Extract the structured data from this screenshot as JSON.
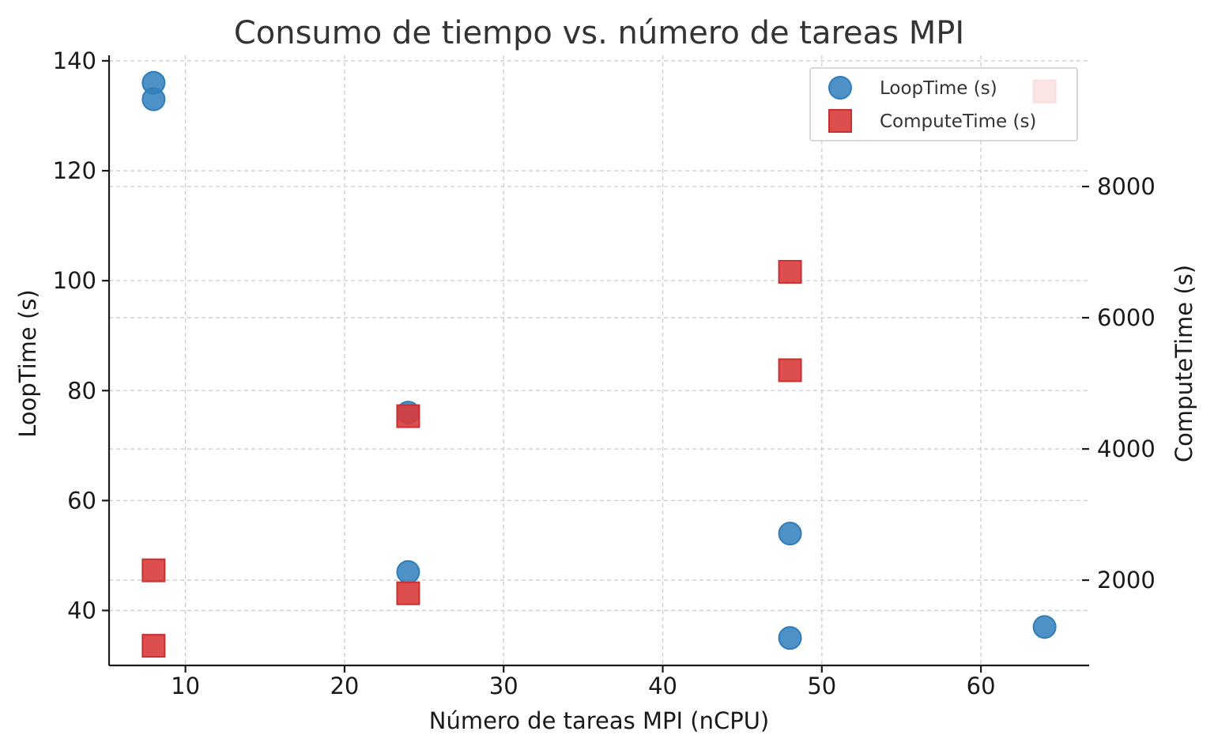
{
  "chart_data": {
    "type": "scatter",
    "title": "Consumo de tiempo vs. número de tareas MPI",
    "xlabel": "Número de tareas MPI (nCPU)",
    "ylabel": "LoopTime (s)",
    "y2label": "ComputeTime (s)",
    "xlim": [
      5.2,
      66.8
    ],
    "ylim": [
      30,
      141
    ],
    "y2lim": [
      700,
      10000
    ],
    "xticks": [
      10,
      20,
      30,
      40,
      50,
      60
    ],
    "yticks": [
      40,
      60,
      80,
      100,
      120,
      140
    ],
    "y2ticks": [
      2000,
      4000,
      6000,
      8000
    ],
    "grid": true,
    "legend_position": "top-right",
    "series": [
      {
        "name": "LoopTime (s)",
        "axis": "left",
        "marker": "circle",
        "color": "#2f7ebc",
        "x": [
          8,
          8,
          24,
          24,
          48,
          48,
          64
        ],
        "y": [
          136,
          133,
          76,
          47,
          54,
          35,
          37
        ]
      },
      {
        "name": "ComputeTime (s)",
        "axis": "right",
        "marker": "square",
        "color": "#d93b3b",
        "x": [
          8,
          8,
          24,
          24,
          48,
          48,
          64
        ],
        "y": [
          2150,
          1000,
          4500,
          1800,
          6700,
          5200,
          9450
        ]
      }
    ]
  }
}
